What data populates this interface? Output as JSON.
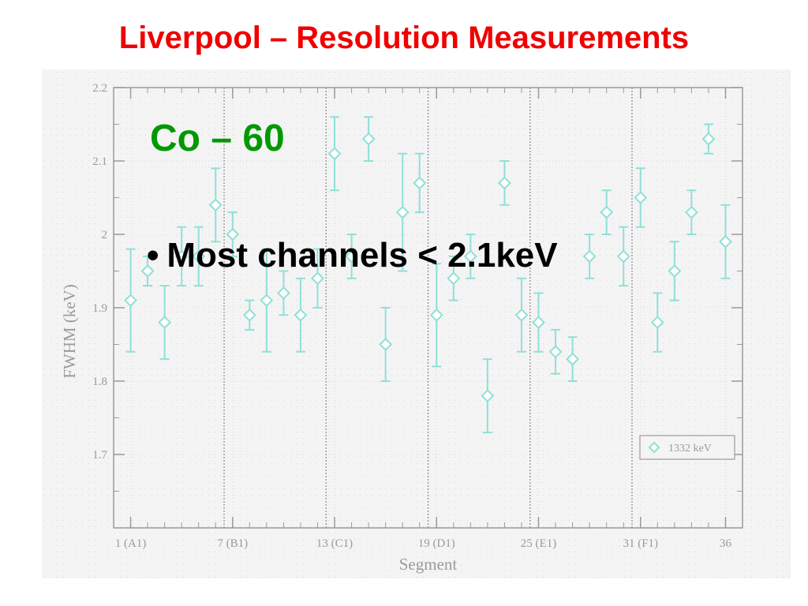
{
  "slide": {
    "title": "Liverpool – Resolution Measurements",
    "subtitle": "Co – 60",
    "bullet_marker": "•",
    "bullet_text": "Most channels < 2.1keV"
  },
  "chart_data": {
    "type": "scatter",
    "title": "",
    "xlabel": "Segment",
    "ylabel": "FWHM (keV)",
    "xlim": [
      0,
      37
    ],
    "ylim": [
      1.6,
      2.2
    ],
    "y_ticks": [
      1.7,
      1.8,
      1.9,
      2.0,
      2.1,
      2.2
    ],
    "y_tick_labels": [
      "1.7",
      "1.8",
      "1.9",
      "2",
      "2.1",
      "2.2"
    ],
    "x_ticks": [
      1,
      7,
      13,
      19,
      25,
      31,
      36
    ],
    "x_tick_labels": [
      "1 (A1)",
      "7 (B1)",
      "13 (C1)",
      "19 (D1)",
      "25 (E1)",
      "31 (F1)",
      "36"
    ],
    "dividers": [
      6.5,
      12.5,
      18.5,
      24.5,
      30.5
    ],
    "grid": true,
    "legend_position": "bottom-right",
    "colors": {
      "series": "#8fe0d8",
      "axis": "#9a9a9a",
      "grid": "#dcdcdc",
      "divider": "#8a8a8a",
      "background": "#f4f4f4"
    },
    "series": [
      {
        "name": "1332 keV",
        "marker": "diamond",
        "x": [
          1,
          2,
          3,
          4,
          5,
          6,
          7,
          8,
          9,
          10,
          11,
          12,
          13,
          14,
          15,
          16,
          17,
          18,
          19,
          20,
          21,
          22,
          23,
          24,
          25,
          26,
          27,
          28,
          29,
          30,
          31,
          32,
          33,
          34,
          35,
          36
        ],
        "y": [
          1.91,
          1.95,
          1.88,
          1.97,
          1.97,
          2.04,
          2.0,
          1.89,
          1.91,
          1.92,
          1.89,
          1.94,
          2.11,
          1.97,
          2.13,
          1.85,
          2.03,
          2.07,
          1.89,
          1.94,
          1.97,
          1.78,
          2.07,
          1.89,
          1.88,
          1.84,
          1.83,
          1.97,
          2.03,
          1.97,
          2.05,
          1.88,
          1.95,
          2.03,
          2.13,
          1.99
        ],
        "err": [
          0.07,
          0.02,
          0.05,
          0.04,
          0.04,
          0.05,
          0.03,
          0.02,
          0.07,
          0.03,
          0.05,
          0.04,
          0.05,
          0.03,
          0.03,
          0.05,
          0.08,
          0.04,
          0.07,
          0.03,
          0.03,
          0.05,
          0.03,
          0.05,
          0.04,
          0.03,
          0.03,
          0.03,
          0.03,
          0.04,
          0.04,
          0.04,
          0.04,
          0.03,
          0.02,
          0.05
        ]
      }
    ]
  }
}
